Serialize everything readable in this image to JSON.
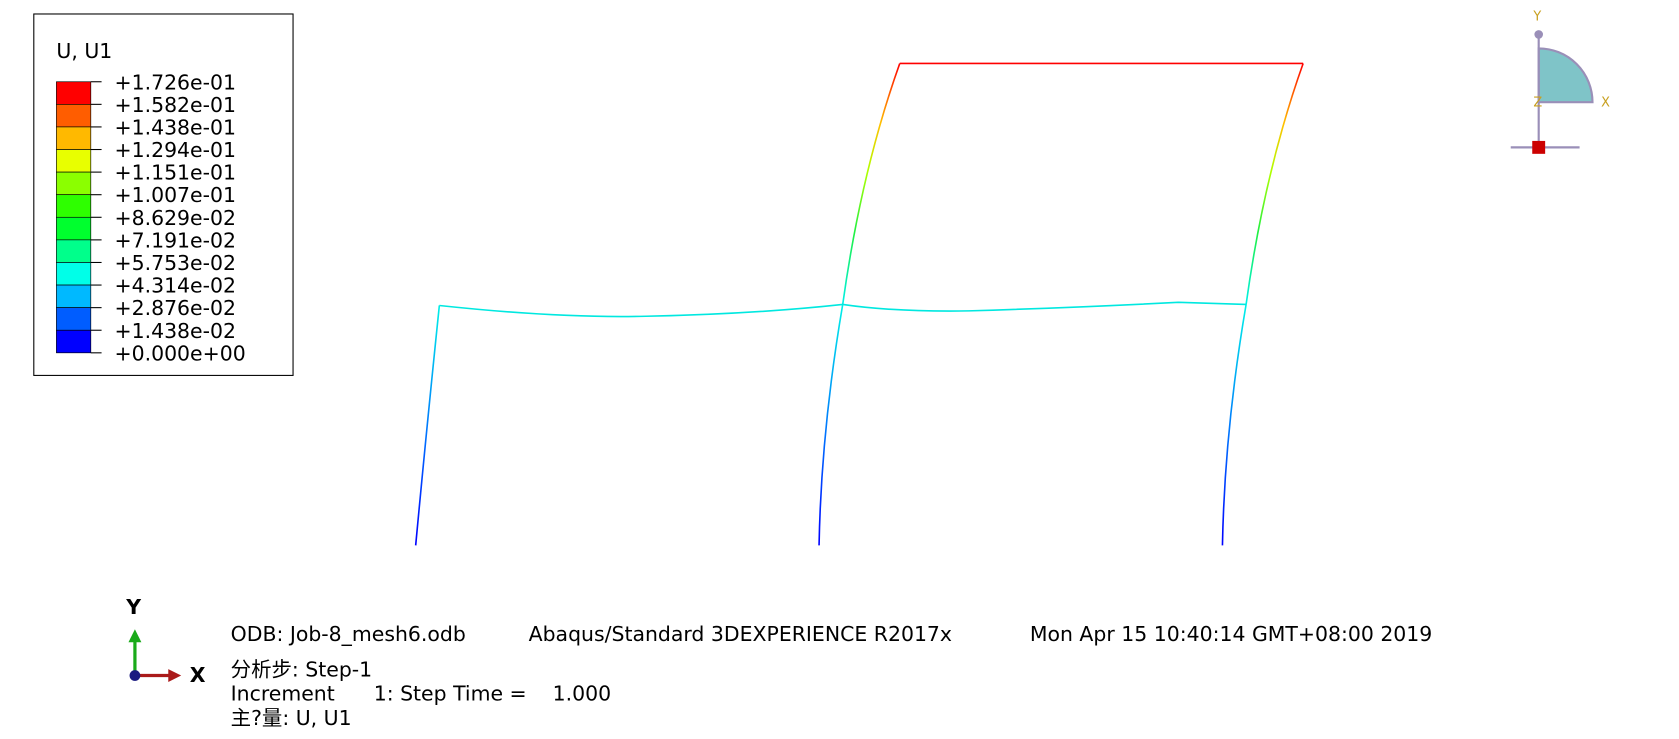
{
  "legend": {
    "title": "U, U1",
    "labels": [
      "+1.726e-01",
      "+1.582e-01",
      "+1.438e-01",
      "+1.294e-01",
      "+1.151e-01",
      "+1.007e-01",
      "+8.629e-02",
      "+7.191e-02",
      "+5.753e-02",
      "+4.314e-02",
      "+2.876e-02",
      "+1.438e-02",
      "+0.000e+00"
    ]
  },
  "info": {
    "odb": "ODB: Job-8_mesh6.odb",
    "solver": "Abaqus/Standard 3DEXPERIENCE R2017x",
    "date": "Mon Apr 15 10:40:14 GMT+08:00 2019",
    "step": "分析步: Step-1",
    "increment": "Increment      1: Step Time =    1.000",
    "variable": "主?量: U, U1"
  },
  "triad": {
    "x": "X",
    "y": "Y"
  },
  "view_cube": {
    "x": "X",
    "y": "Y",
    "z": "Z"
  }
}
